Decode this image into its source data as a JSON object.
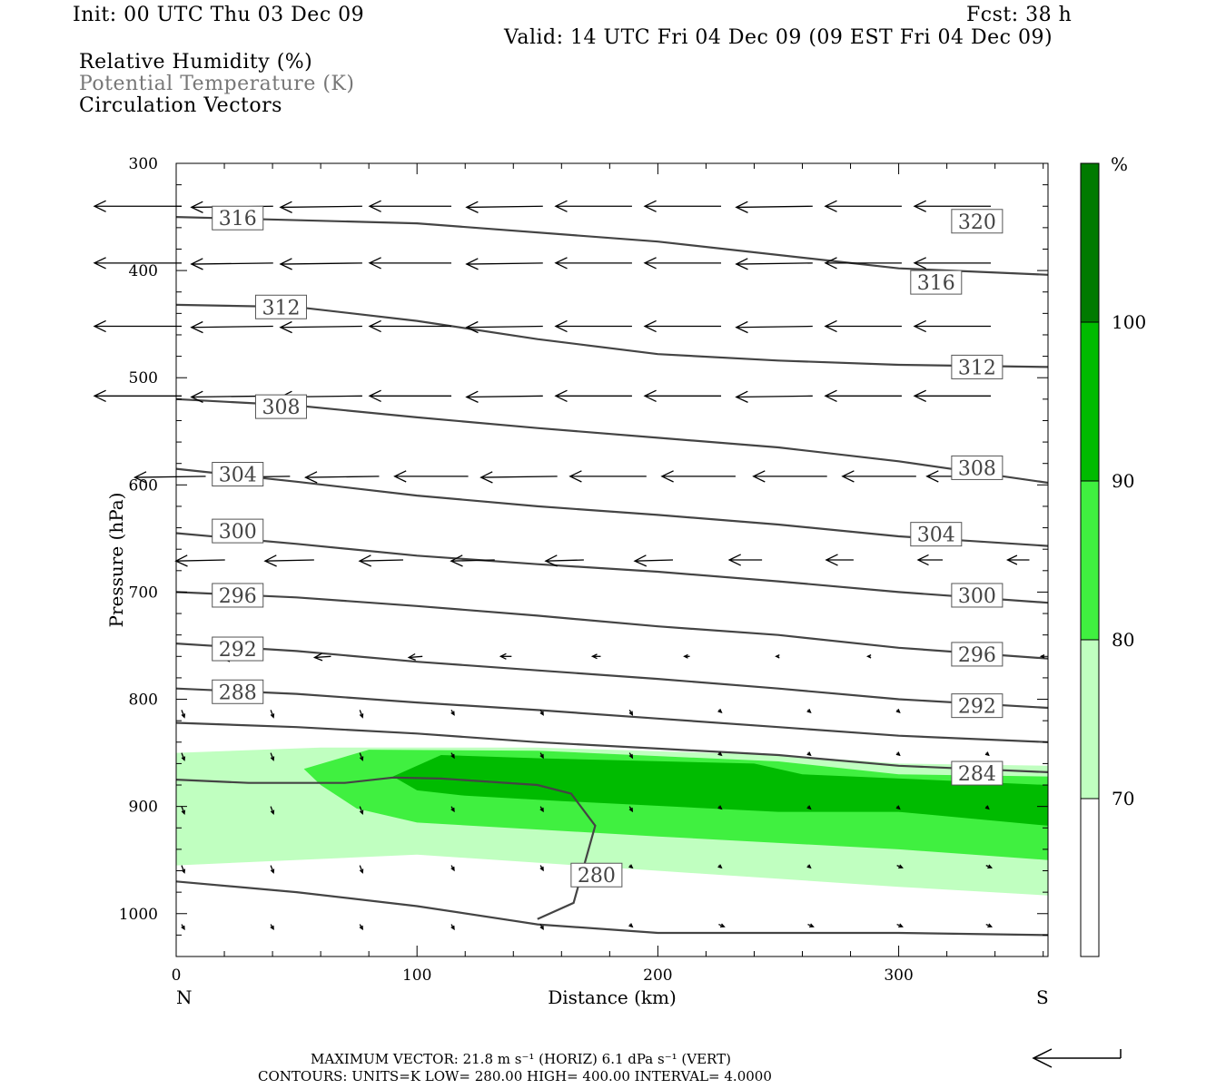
{
  "header": {
    "init": "Init: 00 UTC Thu 03 Dec 09",
    "fcst": "Fcst:   38 h",
    "valid": "Valid: 14 UTC Fri 04 Dec 09 (09 EST Fri 04 Dec 09)"
  },
  "legend_text": {
    "line1": "Relative Humidity (%)",
    "line2": "Potential Temperature (K)",
    "line3": "Circulation Vectors"
  },
  "colors": {
    "rh_70": "#c0ffc0",
    "rh_80": "#40f040",
    "rh_90": "#00bb00",
    "rh_100": "#007a00",
    "theta_line": "#444444",
    "vector": "#000000"
  },
  "footer": {
    "max_vector": "MAXIMUM VECTOR:  21.8 m s⁻¹ (HORIZ)         6.1 dPa s⁻¹ (VERT)",
    "contours": "CONTOURS:  UNITS=K  LOW=  280.00        HIGH=  400.00        INTERVAL=    4.0000"
  },
  "chart_data": {
    "type": "cross-section",
    "xlabel": "Distance (km)",
    "ylabel": "Pressure (hPa)",
    "x_end_labels": [
      "N",
      "S"
    ],
    "xlim": [
      0,
      362
    ],
    "ylim": [
      1040,
      300
    ],
    "x_ticks": [
      0,
      100,
      200,
      300
    ],
    "y_ticks": [
      300,
      400,
      500,
      600,
      700,
      800,
      900,
      1000
    ],
    "colorbar": {
      "unit": "%",
      "levels": [
        70,
        80,
        90,
        100
      ],
      "labels": [
        "70",
        "80",
        "90",
        "100"
      ]
    },
    "theta_contours": [
      {
        "label": "316",
        "points": [
          [
            0,
            350
          ],
          [
            100,
            356
          ],
          [
            200,
            373
          ],
          [
            300,
            398
          ],
          [
            362,
            404
          ]
        ]
      },
      {
        "label": "312",
        "points": [
          [
            0,
            432
          ],
          [
            50,
            434
          ],
          [
            100,
            447
          ],
          [
            150,
            464
          ],
          [
            200,
            478
          ],
          [
            250,
            484
          ],
          [
            300,
            488
          ],
          [
            362,
            490
          ]
        ]
      },
      {
        "label": "308",
        "points": [
          [
            0,
            520
          ],
          [
            50,
            526
          ],
          [
            100,
            537
          ],
          [
            150,
            547
          ],
          [
            200,
            556
          ],
          [
            250,
            565
          ],
          [
            300,
            578
          ],
          [
            362,
            598
          ]
        ]
      },
      {
        "label": "304",
        "points": [
          [
            0,
            585
          ],
          [
            50,
            597
          ],
          [
            100,
            610
          ],
          [
            150,
            620
          ],
          [
            200,
            628
          ],
          [
            250,
            637
          ],
          [
            300,
            648
          ],
          [
            362,
            657
          ]
        ]
      },
      {
        "label": "300",
        "points": [
          [
            0,
            645
          ],
          [
            50,
            655
          ],
          [
            100,
            666
          ],
          [
            150,
            674
          ],
          [
            200,
            681
          ],
          [
            250,
            690
          ],
          [
            300,
            700
          ],
          [
            362,
            710
          ]
        ]
      },
      {
        "label": "296",
        "points": [
          [
            0,
            700
          ],
          [
            50,
            705
          ],
          [
            100,
            713
          ],
          [
            150,
            722
          ],
          [
            200,
            732
          ],
          [
            250,
            740
          ],
          [
            300,
            752
          ],
          [
            362,
            762
          ]
        ]
      },
      {
        "label": "292",
        "points": [
          [
            0,
            748
          ],
          [
            50,
            755
          ],
          [
            100,
            765
          ],
          [
            150,
            773
          ],
          [
            200,
            781
          ],
          [
            250,
            790
          ],
          [
            300,
            800
          ],
          [
            362,
            808
          ]
        ]
      },
      {
        "label": "288",
        "points": [
          [
            0,
            790
          ],
          [
            50,
            795
          ],
          [
            100,
            803
          ],
          [
            150,
            810
          ],
          [
            200,
            818
          ],
          [
            250,
            826
          ],
          [
            300,
            834
          ],
          [
            362,
            840
          ]
        ]
      },
      {
        "label": "",
        "points": [
          [
            0,
            822
          ],
          [
            50,
            826
          ],
          [
            100,
            832
          ],
          [
            150,
            840
          ],
          [
            200,
            846
          ],
          [
            250,
            852
          ],
          [
            300,
            862
          ],
          [
            362,
            868
          ]
        ]
      },
      {
        "label": "284",
        "points": []
      },
      {
        "label": "280",
        "points": [
          [
            0,
            875
          ],
          [
            30,
            878
          ],
          [
            70,
            878
          ],
          [
            90,
            873
          ],
          [
            110,
            874
          ],
          [
            150,
            880
          ],
          [
            164,
            888
          ],
          [
            174,
            918
          ],
          [
            165,
            990
          ],
          [
            150,
            1005
          ]
        ]
      },
      {
        "label": "",
        "points": [
          [
            0,
            970
          ],
          [
            50,
            980
          ],
          [
            100,
            993
          ],
          [
            150,
            1010
          ],
          [
            200,
            1018
          ],
          [
            300,
            1018
          ],
          [
            362,
            1020
          ]
        ]
      }
    ],
    "theta_labels": [
      {
        "text": "316",
        "x": 18,
        "p": 351
      },
      {
        "text": "320",
        "x": 325,
        "p": 354
      },
      {
        "text": "316",
        "x": 308,
        "p": 411
      },
      {
        "text": "312",
        "x": 36,
        "p": 434
      },
      {
        "text": "312",
        "x": 325,
        "p": 490
      },
      {
        "text": "308",
        "x": 36,
        "p": 527
      },
      {
        "text": "308",
        "x": 325,
        "p": 584
      },
      {
        "text": "304",
        "x": 18,
        "p": 590
      },
      {
        "text": "304",
        "x": 308,
        "p": 646
      },
      {
        "text": "300",
        "x": 18,
        "p": 643
      },
      {
        "text": "300",
        "x": 325,
        "p": 703
      },
      {
        "text": "296",
        "x": 18,
        "p": 703
      },
      {
        "text": "296",
        "x": 325,
        "p": 758
      },
      {
        "text": "292",
        "x": 18,
        "p": 753
      },
      {
        "text": "292",
        "x": 325,
        "p": 806
      },
      {
        "text": "288",
        "x": 18,
        "p": 793
      },
      {
        "text": "284",
        "x": 325,
        "p": 869
      },
      {
        "text": "280",
        "x": 167,
        "p": 964
      }
    ],
    "rh_regions": [
      {
        "level": 70,
        "points": [
          [
            0,
            850
          ],
          [
            60,
            845
          ],
          [
            150,
            845
          ],
          [
            250,
            852
          ],
          [
            300,
            860
          ],
          [
            362,
            862
          ],
          [
            362,
            983
          ],
          [
            300,
            975
          ],
          [
            200,
            960
          ],
          [
            100,
            945
          ],
          [
            0,
            955
          ]
        ]
      },
      {
        "level": 80,
        "points": [
          [
            53,
            865
          ],
          [
            80,
            847
          ],
          [
            150,
            848
          ],
          [
            250,
            858
          ],
          [
            300,
            870
          ],
          [
            362,
            872
          ],
          [
            362,
            950
          ],
          [
            300,
            940
          ],
          [
            200,
            928
          ],
          [
            100,
            915
          ],
          [
            75,
            902
          ],
          [
            60,
            880
          ]
        ]
      },
      {
        "level": 90,
        "points": [
          [
            90,
            872
          ],
          [
            110,
            852
          ],
          [
            150,
            855
          ],
          [
            240,
            860
          ],
          [
            260,
            870
          ],
          [
            362,
            880
          ],
          [
            362,
            918
          ],
          [
            300,
            905
          ],
          [
            250,
            905
          ],
          [
            160,
            895
          ],
          [
            120,
            890
          ],
          [
            100,
            885
          ]
        ]
      },
      {
        "level": 100,
        "points": []
      }
    ],
    "vectors": [
      {
        "p": 340,
        "x": [
          0,
          38,
          75,
          112,
          150,
          187,
          224,
          262,
          299,
          336
        ],
        "u": [
          -32,
          -30,
          -30,
          -30,
          -28,
          -28,
          -28,
          -28,
          -28,
          -28
        ],
        "w": [
          0,
          1,
          1,
          0,
          1,
          0,
          0,
          1,
          0,
          0
        ]
      },
      {
        "p": 393,
        "x": [
          0,
          38,
          75,
          112,
          150,
          187,
          224,
          262,
          299,
          336
        ],
        "u": [
          -32,
          -30,
          -30,
          -30,
          -28,
          -28,
          -28,
          -28,
          -28,
          -28
        ],
        "w": [
          0,
          1,
          1,
          0,
          1,
          0,
          0,
          1,
          0,
          0
        ]
      },
      {
        "p": 452,
        "x": [
          0,
          38,
          75,
          112,
          150,
          187,
          224,
          262,
          299,
          336
        ],
        "u": [
          -32,
          -30,
          -30,
          -30,
          -28,
          -28,
          -28,
          -28,
          -28,
          -28
        ],
        "w": [
          0,
          1,
          1,
          0,
          1,
          0,
          0,
          1,
          0,
          0
        ]
      },
      {
        "p": 517,
        "x": [
          0,
          38,
          75,
          112,
          150,
          187,
          224,
          262,
          299,
          336
        ],
        "u": [
          -32,
          -30,
          -30,
          -30,
          -28,
          -28,
          -28,
          -28,
          -28,
          -28
        ],
        "w": [
          0,
          1,
          1,
          0,
          1,
          0,
          0,
          1,
          0,
          0
        ]
      },
      {
        "p": 592,
        "x": [
          10,
          45,
          82,
          119,
          156,
          193,
          230,
          268,
          305,
          340
        ],
        "u": [
          -26,
          -26,
          -27,
          -27,
          -28,
          -28,
          -27,
          -27,
          -27,
          -27
        ],
        "w": [
          1,
          1,
          1,
          0,
          1,
          0,
          0,
          0,
          0,
          0
        ]
      },
      {
        "p": 670,
        "x": [
          18,
          55,
          92,
          130,
          167,
          204,
          241,
          279,
          316,
          352
        ],
        "u": [
          -18,
          -18,
          -16,
          -16,
          -14,
          -14,
          -12,
          -10,
          -9,
          -8
        ],
        "w": [
          1,
          1,
          1,
          1,
          1,
          1,
          0,
          0,
          0,
          0
        ]
      },
      {
        "p": 760,
        "x": [
          25,
          62,
          100,
          137,
          174,
          211,
          248,
          286,
          323,
          358
        ],
        "u": [
          -8,
          -6,
          -5,
          -4,
          -3,
          -2,
          -1,
          -1,
          -1,
          -1
        ],
        "w": [
          1,
          1,
          1,
          0,
          0,
          0,
          0,
          0,
          0,
          0
        ]
      },
      {
        "p": 810,
        "x": [
          0,
          37,
          74,
          112,
          149,
          186,
          223,
          260,
          297,
          334
        ],
        "u": [
          1,
          1,
          1,
          1,
          1,
          1,
          1,
          1,
          1,
          1
        ],
        "w": [
          3,
          3,
          3,
          2,
          2,
          2,
          1,
          1,
          1,
          1
        ]
      },
      {
        "p": 850,
        "x": [
          0,
          37,
          74,
          112,
          149,
          186,
          223,
          260,
          297,
          334
        ],
        "u": [
          1,
          1,
          1,
          1,
          1,
          1,
          1,
          1,
          1,
          1
        ],
        "w": [
          3,
          3,
          3,
          2,
          2,
          2,
          1,
          1,
          1,
          1
        ]
      },
      {
        "p": 900,
        "x": [
          0,
          37,
          74,
          112,
          149,
          186,
          223,
          260,
          297,
          334
        ],
        "u": [
          1,
          1,
          1,
          1,
          1,
          1,
          1,
          1,
          1,
          1
        ],
        "w": [
          3,
          3,
          3,
          2,
          2,
          2,
          1,
          1,
          1,
          1
        ]
      },
      {
        "p": 955,
        "x": [
          0,
          37,
          74,
          112,
          149,
          186,
          223,
          260,
          297,
          334
        ],
        "u": [
          1,
          1,
          1,
          1,
          1,
          1,
          1,
          1,
          2,
          2
        ],
        "w": [
          3,
          3,
          3,
          2,
          2,
          1,
          1,
          1,
          1,
          1
        ]
      },
      {
        "p": 1010,
        "x": [
          0,
          37,
          74,
          112,
          149,
          186,
          223,
          260,
          297,
          334
        ],
        "u": [
          1,
          1,
          1,
          1,
          1,
          1,
          2,
          2,
          2,
          2
        ],
        "w": [
          2,
          2,
          2,
          2,
          2,
          1,
          1,
          1,
          1,
          1
        ]
      }
    ]
  }
}
